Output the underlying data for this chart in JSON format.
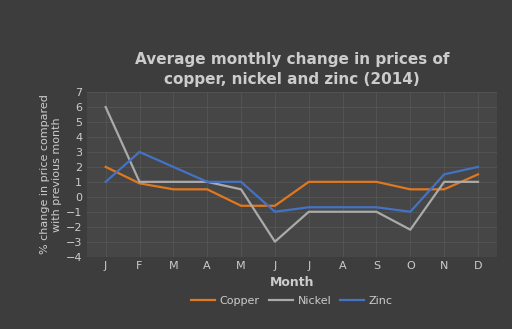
{
  "title": "Average monthly change in prices of\ncopper, nickel and zinc (2014)",
  "xlabel": "Month",
  "ylabel": "% change in price compared\nwith previous month",
  "months": [
    "J",
    "F",
    "M",
    "A",
    "M",
    "J",
    "J",
    "A",
    "S",
    "O",
    "N",
    "D"
  ],
  "copper": [
    2.0,
    0.9,
    0.5,
    0.5,
    -0.6,
    -0.6,
    1.0,
    1.0,
    1.0,
    0.5,
    0.5,
    1.5
  ],
  "nickel": [
    6.0,
    1.0,
    1.0,
    1.0,
    0.5,
    -3.0,
    -1.0,
    -1.0,
    -1.0,
    -2.2,
    1.0,
    1.0
  ],
  "zinc": [
    1.0,
    3.0,
    2.0,
    1.0,
    1.0,
    -1.0,
    -0.7,
    -0.7,
    -0.7,
    -1.0,
    1.5,
    2.0
  ],
  "copper_color": "#e07820",
  "nickel_color": "#aaaaaa",
  "zinc_color": "#4472c4",
  "background_color": "#3d3d3d",
  "plot_background": "#464646",
  "text_color": "#cccccc",
  "grid_color": "#585858",
  "ylim": [
    -4,
    7
  ],
  "yticks": [
    -4,
    -3,
    -2,
    -1,
    0,
    1,
    2,
    3,
    4,
    5,
    6,
    7
  ],
  "title_fontsize": 11,
  "label_fontsize": 9,
  "tick_fontsize": 8,
  "legend_fontsize": 8,
  "linewidth": 1.6
}
